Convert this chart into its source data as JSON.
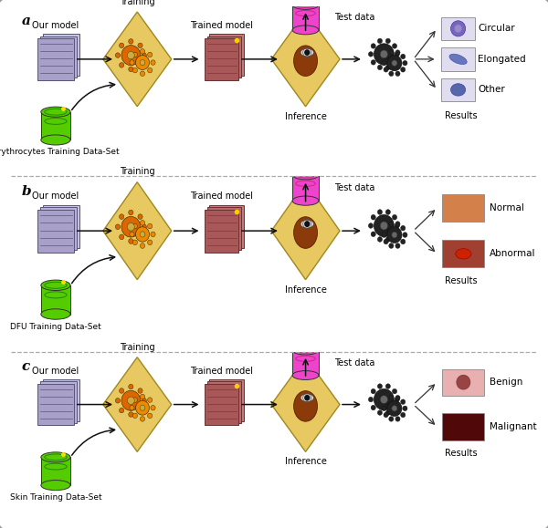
{
  "panel_labels": [
    "a",
    "b",
    "c"
  ],
  "panel_datasets": [
    "Erythrocytes Training Data-Set",
    "DFU Training Data-Set",
    "Skin Training Data-Set"
  ],
  "panel_results_a": [
    "Circular",
    "Elongated",
    "Other"
  ],
  "panel_results_b": [
    "Normal",
    "Abnormal"
  ],
  "panel_results_c": [
    "Benign",
    "Malignant"
  ],
  "bg_color": "#ffffff",
  "border_color": "#999999",
  "model_icon_colors": [
    "#c8c0e8",
    "#b8b0d8",
    "#a8a0c8"
  ],
  "trained_model_colors": [
    "#c87878",
    "#b86868",
    "#a85858"
  ],
  "training_diamond_color": "#e8c860",
  "training_diamond_edge": "#a08820",
  "inference_diamond_color": "#e8c860",
  "inference_diamond_edge": "#a08820",
  "db_green_outer": "#55cc00",
  "db_green_inner": "#228800",
  "db_pink_outer": "#ee44cc",
  "db_pink_inner": "#cc2288",
  "gear_dark": "#222222",
  "arrow_color": "#111111",
  "font_size_label": 11,
  "font_size_small": 7,
  "font_size_result": 7.5,
  "sep_line_color": "#aaaaaa",
  "result_box_a": "#e0ddf0",
  "result_box_b1": "#d4804a",
  "result_box_b2": "#a04030",
  "result_box_c1": "#e8b0b0",
  "result_box_c2": "#500808"
}
